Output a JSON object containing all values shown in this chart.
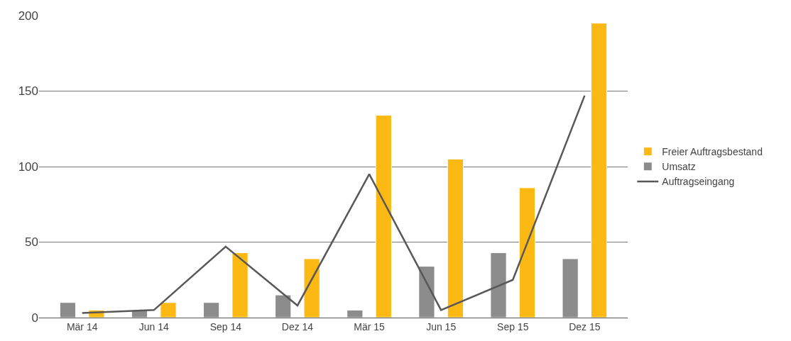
{
  "chart_data": {
    "type": "bar",
    "categories": [
      "Mär 14",
      "Jun 14",
      "Sep 14",
      "Dez 14",
      "Mär 15",
      "Jun 15",
      "Sep 15",
      "Dez 15"
    ],
    "series": [
      {
        "name": "Umsatz",
        "color": "#8c8c8c",
        "values": [
          10,
          5,
          10,
          15,
          5,
          34,
          43,
          39
        ]
      },
      {
        "name": "Freier Auftragsbestand",
        "color": "#fdb913",
        "values": [
          5,
          10,
          43,
          39,
          134,
          105,
          86,
          195
        ]
      },
      {
        "name": "Auftragseingang",
        "type": "line",
        "color": "#58585a",
        "values": [
          3,
          5,
          47,
          8,
          95,
          5,
          25,
          147
        ]
      }
    ],
    "ylim": [
      0,
      200
    ],
    "yticks": [
      0,
      50,
      100,
      150,
      200
    ],
    "grid": "y",
    "legend": "right"
  }
}
